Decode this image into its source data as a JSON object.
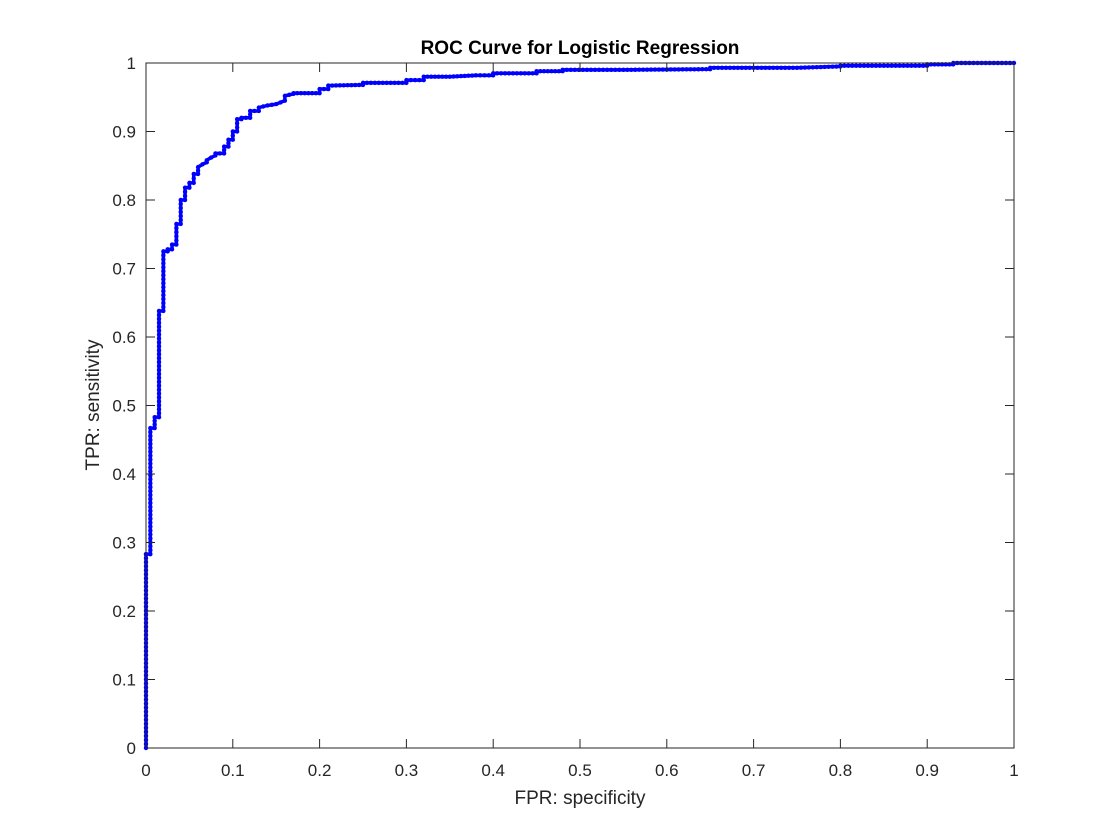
{
  "chart_data": {
    "type": "line",
    "title": "ROC Curve for Logistic Regression",
    "xlabel": "FPR: specificity",
    "ylabel": "TPR: sensitivity",
    "xlim": [
      0,
      1
    ],
    "ylim": [
      0,
      1
    ],
    "xticks": [
      0,
      0.1,
      0.2,
      0.3,
      0.4,
      0.5,
      0.6,
      0.7,
      0.8,
      0.9,
      1
    ],
    "xtick_labels": [
      "0",
      "0.1",
      "0.2",
      "0.3",
      "0.4",
      "0.5",
      "0.6",
      "0.7",
      "0.8",
      "0.9",
      "1"
    ],
    "yticks": [
      0,
      0.1,
      0.2,
      0.3,
      0.4,
      0.5,
      0.6,
      0.7,
      0.8,
      0.9,
      1
    ],
    "ytick_labels": [
      "0",
      "0.1",
      "0.2",
      "0.3",
      "0.4",
      "0.5",
      "0.6",
      "0.7",
      "0.8",
      "0.9",
      "1"
    ],
    "grid": false,
    "line_color": "#0000ff",
    "marker": "dot",
    "series": [
      {
        "x": [
          0,
          0,
          0,
          0.005,
          0.005,
          0.01,
          0.01,
          0.015,
          0.015,
          0.02,
          0.02,
          0.025,
          0.025,
          0.03,
          0.03,
          0.035,
          0.035,
          0.04,
          0.04,
          0.045,
          0.045,
          0.05,
          0.05,
          0.055,
          0.055,
          0.06,
          0.06,
          0.065,
          0.07,
          0.07,
          0.075,
          0.08,
          0.08,
          0.09,
          0.09,
          0.095,
          0.095,
          0.1,
          0.1,
          0.105,
          0.105,
          0.11,
          0.11,
          0.12,
          0.12,
          0.13,
          0.13,
          0.14,
          0.15,
          0.16,
          0.16,
          0.17,
          0.17,
          0.2,
          0.2,
          0.21,
          0.21,
          0.25,
          0.25,
          0.3,
          0.3,
          0.32,
          0.32,
          0.35,
          0.38,
          0.4,
          0.4,
          0.45,
          0.45,
          0.48,
          0.48,
          0.55,
          0.65,
          0.65,
          0.75,
          0.8,
          0.8,
          0.9,
          0.9,
          0.93,
          0.93,
          1
        ],
        "y": [
          0,
          0.283,
          0.283,
          0.283,
          0.467,
          0.467,
          0.483,
          0.483,
          0.638,
          0.638,
          0.725,
          0.725,
          0.728,
          0.728,
          0.735,
          0.735,
          0.765,
          0.765,
          0.8,
          0.8,
          0.818,
          0.818,
          0.825,
          0.825,
          0.838,
          0.838,
          0.848,
          0.852,
          0.855,
          0.858,
          0.862,
          0.865,
          0.868,
          0.868,
          0.878,
          0.878,
          0.888,
          0.888,
          0.9,
          0.9,
          0.918,
          0.918,
          0.92,
          0.92,
          0.93,
          0.93,
          0.935,
          0.938,
          0.94,
          0.945,
          0.952,
          0.955,
          0.956,
          0.956,
          0.962,
          0.962,
          0.967,
          0.968,
          0.971,
          0.971,
          0.975,
          0.975,
          0.98,
          0.98,
          0.982,
          0.982,
          0.985,
          0.985,
          0.988,
          0.988,
          0.99,
          0.99,
          0.991,
          0.993,
          0.993,
          0.995,
          0.996,
          0.996,
          0.998,
          0.998,
          1,
          1
        ]
      }
    ]
  }
}
